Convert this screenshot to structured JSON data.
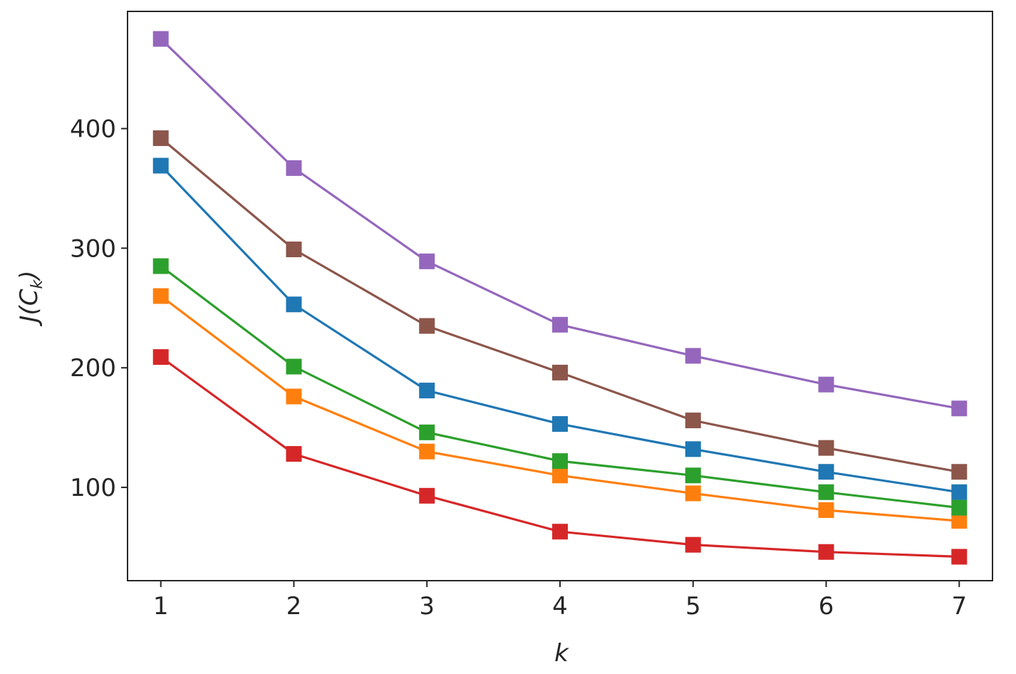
{
  "chart_data": {
    "type": "line",
    "marker": "square",
    "x": [
      1,
      2,
      3,
      4,
      5,
      6,
      7
    ],
    "xlabel": "k",
    "ylabel": {
      "main": "J(C",
      "sub": "k",
      "close": ")"
    },
    "xlim": [
      0.75,
      7.25
    ],
    "ylim": [
      22,
      498
    ],
    "xticks": [
      1,
      2,
      3,
      4,
      5,
      6,
      7
    ],
    "yticks": [
      100,
      200,
      300,
      400
    ],
    "grid": false,
    "legend": "none",
    "series": [
      {
        "color": "#1f77b4",
        "values": [
          369,
          253,
          181,
          153,
          132,
          113,
          96
        ]
      },
      {
        "color": "#ff7f0e",
        "values": [
          260,
          176,
          130,
          110,
          95,
          81,
          72
        ]
      },
      {
        "color": "#2ca02c",
        "values": [
          285,
          201,
          146,
          122,
          110,
          96,
          83
        ]
      },
      {
        "color": "#d62728",
        "values": [
          209,
          128,
          93,
          63,
          52,
          46,
          42
        ]
      },
      {
        "color": "#9467bd",
        "values": [
          475,
          367,
          289,
          236,
          210,
          186,
          166
        ]
      },
      {
        "color": "#8c564b",
        "values": [
          392,
          299,
          235,
          196,
          156,
          133,
          113
        ]
      }
    ]
  }
}
